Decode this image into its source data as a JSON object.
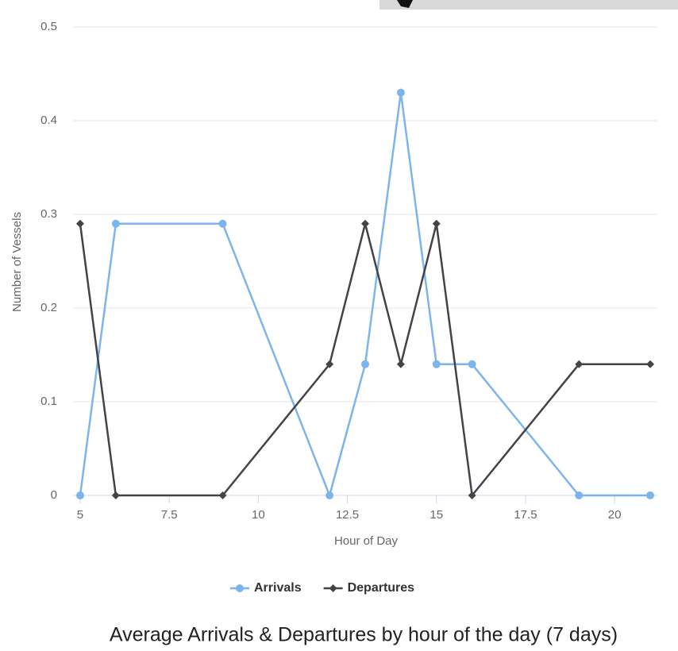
{
  "chart_data": {
    "type": "line",
    "title": "Average Arrivals & Departures by hour of the day (7 days)",
    "x_label": "Hour of Day",
    "y_label": "Number of Vessels",
    "x": [
      5,
      6,
      9,
      12,
      13,
      14,
      15,
      16,
      19,
      21
    ],
    "series": [
      {
        "name": "Arrivals",
        "color": "#7cb5ec",
        "marker": "circle",
        "values": [
          0,
          0.29,
          0.29,
          0,
          0.14,
          0.43,
          0.14,
          0.14,
          0,
          0
        ]
      },
      {
        "name": "Departures",
        "color": "#434348",
        "marker": "diamond",
        "values": [
          0.29,
          0,
          0,
          0.14,
          0.29,
          0.14,
          0.29,
          0,
          0.14,
          0.14
        ]
      }
    ],
    "xlim": [
      4.8,
      21.2
    ],
    "ylim": [
      0,
      0.5
    ],
    "xticks": [
      5,
      7.5,
      10,
      12.5,
      15,
      17.5,
      20
    ],
    "yticks": [
      0,
      0.1,
      0.2,
      0.3,
      0.4,
      0.5
    ],
    "grid": true,
    "legend": "bottom"
  }
}
